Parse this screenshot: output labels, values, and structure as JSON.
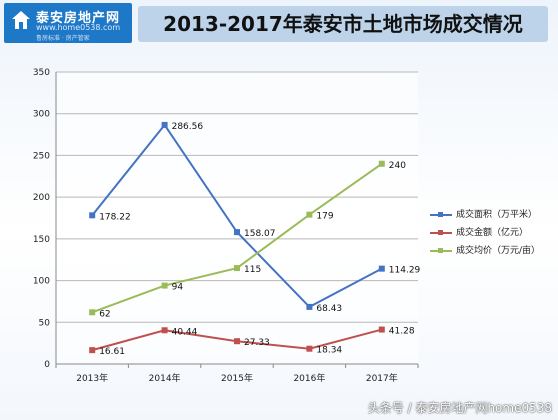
{
  "header": {
    "logo_title": "泰安房地产网",
    "logo_url": "www.home0538.com",
    "logo_slogan": "鲁房标准 · 房产管家",
    "title": "2013-2017年泰安市土地市场成交情况"
  },
  "footer": {
    "watermark": "头条号 / 泰安房地产网home0538"
  },
  "chart_data": {
    "type": "line",
    "title": "2013-2017年泰安市土地市场成交情况",
    "xlabel": "",
    "ylabel": "",
    "categories": [
      "2013年",
      "2014年",
      "2015年",
      "2016年",
      "2017年"
    ],
    "ylim": [
      0,
      350
    ],
    "yticks": [
      0,
      50,
      100,
      150,
      200,
      250,
      300,
      350
    ],
    "grid": true,
    "legend_position": "right",
    "series": [
      {
        "name": "成交面积（万平米）",
        "color": "#4472c4",
        "values": [
          178.22,
          286.56,
          158.07,
          68.43,
          114.29
        ],
        "labels": [
          "178.22",
          "286.56",
          "158.07",
          "68.43",
          "114.29"
        ]
      },
      {
        "name": "成交金额（亿元）",
        "color": "#c0504d",
        "values": [
          16.61,
          40.44,
          27.33,
          18.34,
          41.28
        ],
        "labels": [
          "16.61",
          "40.44",
          "27.33",
          "18.34",
          "41.28"
        ]
      },
      {
        "name": "成交均价（万元/亩）",
        "color": "#9bbb59",
        "values": [
          62,
          94,
          115,
          179,
          240
        ],
        "labels": [
          "62",
          "94",
          "115",
          "179",
          "240"
        ]
      }
    ]
  }
}
